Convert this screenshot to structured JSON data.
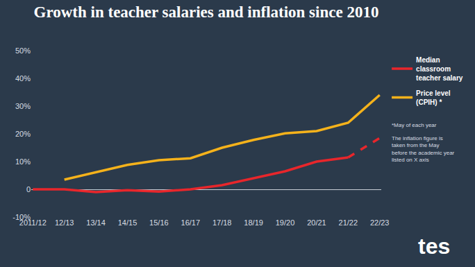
{
  "chart_data": {
    "type": "line",
    "title": "Growth in teacher salaries and inflation since 2010",
    "categories": [
      "2011/12",
      "12/13",
      "13/14",
      "14/15",
      "15/16",
      "16/17",
      "17/18",
      "18/19",
      "19/20",
      "20/21",
      "21/22",
      "22/23"
    ],
    "series": [
      {
        "name": "Median classroom teacher salary",
        "color": "#e8262b",
        "line_style": "solid",
        "values": [
          0,
          0,
          -1,
          -0.3,
          -0.8,
          0,
          1.5,
          4,
          6.5,
          10,
          11.5,
          null
        ]
      },
      {
        "name": "Median classroom teacher salary",
        "color": "#e8262b",
        "line_style": "dashed",
        "values": [
          null,
          null,
          null,
          null,
          null,
          null,
          null,
          null,
          null,
          null,
          11.5,
          18.5
        ]
      },
      {
        "name": "Price level (CPIH) *",
        "color": "#f5b21b",
        "line_style": "solid",
        "values": [
          null,
          3.5,
          6.2,
          8.8,
          10.5,
          11.2,
          15,
          17.8,
          20.2,
          21,
          24,
          34
        ]
      }
    ],
    "ylim": [
      -10,
      50
    ],
    "yticks": [
      {
        "value": -10,
        "label": "-10%"
      },
      0,
      {
        "value": 10,
        "label": "10%"
      },
      {
        "value": 20,
        "label": "20%"
      },
      {
        "value": 30,
        "label": "30%"
      },
      {
        "value": 40,
        "label": "40%"
      },
      {
        "value": 50,
        "label": "50%"
      }
    ],
    "grid": false,
    "legend": "right",
    "annotations": [
      "*May of each year",
      "The inflation figure is taken from the May before the academic year listed on X axis"
    ],
    "source": "tes"
  }
}
